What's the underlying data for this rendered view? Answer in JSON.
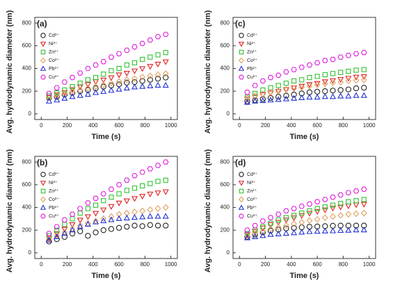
{
  "chart_data": [
    {
      "type": "scatter",
      "panel_label": "(a)",
      "xlabel": "Time (s)",
      "ylabel": "Avg. hydrodynamic diameter (nm)",
      "xlim": [
        -50,
        1050
      ],
      "ylim": [
        -50,
        850
      ],
      "xticks": [
        0,
        200,
        400,
        600,
        800,
        1000
      ],
      "yticks": [
        0,
        200,
        400,
        600,
        800
      ],
      "x": [
        60,
        120,
        180,
        240,
        300,
        360,
        420,
        480,
        540,
        600,
        660,
        720,
        780,
        840,
        900,
        960
      ],
      "series": [
        {
          "name": "Cd²⁺",
          "color": "#222222",
          "marker": "circle",
          "values": [
            140,
            150,
            170,
            185,
            200,
            210,
            225,
            240,
            250,
            260,
            275,
            280,
            290,
            300,
            310,
            320
          ]
        },
        {
          "name": "Ni²⁺",
          "color": "#e02020",
          "marker": "triangle-down",
          "values": [
            150,
            170,
            190,
            215,
            240,
            260,
            285,
            300,
            320,
            345,
            360,
            380,
            400,
            420,
            440,
            460
          ]
        },
        {
          "name": "Zn²⁺",
          "color": "#30c030",
          "marker": "square",
          "values": [
            160,
            185,
            210,
            240,
            270,
            300,
            320,
            350,
            380,
            400,
            430,
            450,
            480,
            500,
            520,
            540
          ]
        },
        {
          "name": "Co²⁺",
          "color": "#e0a060",
          "marker": "diamond",
          "values": [
            140,
            160,
            180,
            195,
            210,
            225,
            240,
            255,
            270,
            285,
            300,
            310,
            325,
            335,
            345,
            355
          ]
        },
        {
          "name": "Pb²⁺",
          "color": "#2030d0",
          "marker": "triangle",
          "values": [
            110,
            120,
            135,
            150,
            160,
            170,
            185,
            195,
            205,
            215,
            225,
            235,
            240,
            245,
            250,
            250
          ]
        },
        {
          "name": "Cu²⁺",
          "color": "#e020e0",
          "marker": "hexagon",
          "values": [
            180,
            230,
            280,
            320,
            360,
            400,
            430,
            460,
            500,
            530,
            560,
            590,
            620,
            650,
            680,
            700
          ]
        }
      ]
    },
    {
      "type": "scatter",
      "panel_label": "(b)",
      "xlabel": "Time (s)",
      "ylabel": "Avg. hydrodynamic diameter (nm)",
      "xlim": [
        -50,
        1050
      ],
      "ylim": [
        -50,
        850
      ],
      "xticks": [
        0,
        200,
        400,
        600,
        800,
        1000
      ],
      "yticks": [
        0,
        200,
        400,
        600,
        800
      ],
      "x": [
        60,
        120,
        180,
        240,
        300,
        360,
        420,
        480,
        540,
        600,
        660,
        720,
        780,
        840,
        900,
        960
      ],
      "series": [
        {
          "name": "Cd²⁺",
          "color": "#222222",
          "marker": "circle",
          "values": [
            100,
            120,
            140,
            170,
            190,
            150,
            180,
            200,
            210,
            220,
            230,
            240,
            235,
            245,
            240,
            240
          ]
        },
        {
          "name": "Ni²⁺",
          "color": "#e02020",
          "marker": "triangle-down",
          "values": [
            130,
            170,
            210,
            250,
            290,
            320,
            350,
            380,
            410,
            440,
            460,
            480,
            500,
            520,
            530,
            540
          ]
        },
        {
          "name": "Zn²⁺",
          "color": "#30c030",
          "marker": "square",
          "values": [
            150,
            200,
            250,
            300,
            350,
            390,
            420,
            460,
            490,
            520,
            550,
            570,
            590,
            610,
            630,
            640
          ]
        },
        {
          "name": "Co²⁺",
          "color": "#e0a060",
          "marker": "diamond",
          "values": [
            120,
            150,
            180,
            210,
            240,
            260,
            280,
            300,
            320,
            340,
            350,
            360,
            370,
            380,
            390,
            400
          ]
        },
        {
          "name": "Pb²⁺",
          "color": "#2030d0",
          "marker": "triangle",
          "values": [
            110,
            140,
            170,
            200,
            230,
            250,
            270,
            280,
            290,
            300,
            305,
            310,
            315,
            320,
            320,
            320
          ]
        },
        {
          "name": "Cu²⁺",
          "color": "#e020e0",
          "marker": "hexagon",
          "values": [
            170,
            230,
            290,
            340,
            390,
            440,
            480,
            520,
            560,
            600,
            640,
            680,
            710,
            740,
            770,
            800
          ]
        }
      ]
    },
    {
      "type": "scatter",
      "panel_label": "(c)",
      "xlabel": "Time (s)",
      "ylabel": "Avg. hydrodynamic diameter (nm)",
      "xlim": [
        -50,
        1050
      ],
      "ylim": [
        -50,
        850
      ],
      "xticks": [
        0,
        200,
        400,
        600,
        800,
        1000
      ],
      "yticks": [
        0,
        200,
        400,
        600,
        800
      ],
      "x": [
        60,
        120,
        180,
        240,
        300,
        360,
        420,
        480,
        540,
        600,
        660,
        720,
        780,
        840,
        900,
        960
      ],
      "series": [
        {
          "name": "Cd²⁺",
          "color": "#222222",
          "marker": "circle",
          "values": [
            110,
            120,
            130,
            140,
            150,
            160,
            170,
            180,
            190,
            195,
            200,
            205,
            210,
            215,
            225,
            230
          ]
        },
        {
          "name": "Ni²⁺",
          "color": "#e02020",
          "marker": "triangle-down",
          "values": [
            130,
            150,
            170,
            185,
            200,
            215,
            230,
            245,
            260,
            270,
            285,
            295,
            305,
            315,
            325,
            330
          ]
        },
        {
          "name": "Zn²⁺",
          "color": "#30c030",
          "marker": "square",
          "values": [
            150,
            180,
            210,
            230,
            250,
            270,
            290,
            300,
            320,
            330,
            345,
            355,
            365,
            375,
            385,
            390
          ]
        },
        {
          "name": "Co²⁺",
          "color": "#e0a060",
          "marker": "diamond",
          "values": [
            140,
            160,
            175,
            190,
            200,
            215,
            225,
            235,
            245,
            255,
            265,
            275,
            280,
            290,
            295,
            300
          ]
        },
        {
          "name": "Pb²⁺",
          "color": "#2030d0",
          "marker": "triangle",
          "values": [
            100,
            110,
            115,
            120,
            125,
            130,
            135,
            140,
            145,
            145,
            150,
            150,
            155,
            155,
            160,
            160
          ]
        },
        {
          "name": "Cu²⁺",
          "color": "#e020e0",
          "marker": "hexagon",
          "values": [
            190,
            250,
            290,
            320,
            340,
            370,
            390,
            410,
            430,
            450,
            470,
            480,
            500,
            515,
            530,
            540
          ]
        }
      ]
    },
    {
      "type": "scatter",
      "panel_label": "(d)",
      "xlabel": "Time (s)",
      "ylabel": "Avg. hydrodynamic diameter (nm)",
      "xlim": [
        -50,
        1050
      ],
      "ylim": [
        -50,
        850
      ],
      "xticks": [
        0,
        200,
        400,
        600,
        800,
        1000
      ],
      "yticks": [
        0,
        200,
        400,
        600,
        800
      ],
      "x": [
        60,
        120,
        180,
        240,
        300,
        360,
        420,
        480,
        540,
        600,
        660,
        720,
        780,
        840,
        900,
        960
      ],
      "series": [
        {
          "name": "Cd²⁺",
          "color": "#222222",
          "marker": "circle",
          "values": [
            140,
            160,
            180,
            195,
            205,
            215,
            220,
            225,
            230,
            232,
            235,
            238,
            240,
            240,
            240,
            240
          ]
        },
        {
          "name": "Ni²⁺",
          "color": "#e02020",
          "marker": "triangle-down",
          "values": [
            160,
            190,
            220,
            250,
            270,
            290,
            310,
            330,
            350,
            365,
            380,
            395,
            405,
            415,
            425,
            430
          ]
        },
        {
          "name": "Zn²⁺",
          "color": "#30c030",
          "marker": "square",
          "values": [
            170,
            200,
            230,
            260,
            290,
            310,
            330,
            350,
            370,
            390,
            405,
            420,
            435,
            450,
            460,
            470
          ]
        },
        {
          "name": "Co²⁺",
          "color": "#e0a060",
          "marker": "diamond",
          "values": [
            150,
            170,
            190,
            210,
            225,
            240,
            255,
            270,
            285,
            295,
            310,
            320,
            330,
            340,
            345,
            350
          ]
        },
        {
          "name": "Pb²⁺",
          "color": "#2030d0",
          "marker": "triangle",
          "values": [
            130,
            140,
            150,
            160,
            165,
            170,
            175,
            180,
            185,
            188,
            190,
            192,
            195,
            197,
            200,
            200
          ]
        },
        {
          "name": "Cu²⁺",
          "color": "#e020e0",
          "marker": "hexagon",
          "values": [
            200,
            240,
            280,
            310,
            340,
            370,
            390,
            410,
            430,
            450,
            470,
            490,
            510,
            530,
            545,
            560
          ]
        }
      ]
    }
  ]
}
